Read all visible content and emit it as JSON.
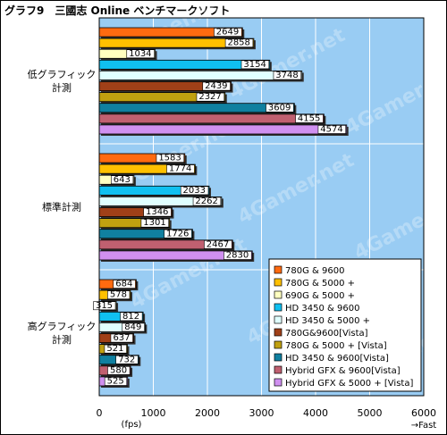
{
  "chart_data": {
    "type": "bar",
    "orientation": "horizontal",
    "title": "グラフ9　三國志 Online ベンチマークソフト",
    "xlabel": "(fps)",
    "x_direction_label": "→Fast",
    "xlim": [
      0,
      6000
    ],
    "xticks": [
      0,
      1000,
      2000,
      3000,
      4000,
      5000,
      6000
    ],
    "grid": true,
    "legend_position": "bottom-right",
    "watermark": "4Gamer.net",
    "groups": [
      "低グラフィック計測",
      "標準計測",
      "高グラフィック計測"
    ],
    "group_labels": [
      [
        "低グラフィック",
        "計測"
      ],
      [
        "標準計測"
      ],
      [
        "高グラフィック",
        "計測"
      ]
    ],
    "series": [
      {
        "name": "780G & 9600",
        "color": "#ff6a10",
        "values": [
          2649,
          1583,
          684
        ]
      },
      {
        "name": "780G & 5000 +",
        "color": "#ffc000",
        "values": [
          2858,
          1774,
          578
        ]
      },
      {
        "name": "690G & 5000 +",
        "color": "#ffffc0",
        "values": [
          1034,
          643,
          315
        ]
      },
      {
        "name": "HD 3450 & 9600",
        "color": "#10c0f0",
        "values": [
          3154,
          2033,
          812
        ]
      },
      {
        "name": "HD 3450 & 5000 +",
        "color": "#e0ffff",
        "values": [
          3748,
          2262,
          849
        ]
      },
      {
        "name": "780G&9600[Vista]",
        "color": "#a04018",
        "values": [
          2439,
          1346,
          637
        ]
      },
      {
        "name": "780G & 5000 + [Vista]",
        "color": "#c0a010",
        "values": [
          2327,
          1301,
          521
        ]
      },
      {
        "name": "HD 3450 & 9600[Vista]",
        "color": "#1080a0",
        "values": [
          3609,
          1726,
          732
        ]
      },
      {
        "name": "Hybrid GFX & 9600[Vista]",
        "color": "#c06070",
        "values": [
          4155,
          2467,
          580
        ]
      },
      {
        "name": "Hybrid GFX & 5000 + [Vista]",
        "color": "#d090f0",
        "values": [
          4574,
          2830,
          525
        ]
      }
    ]
  }
}
